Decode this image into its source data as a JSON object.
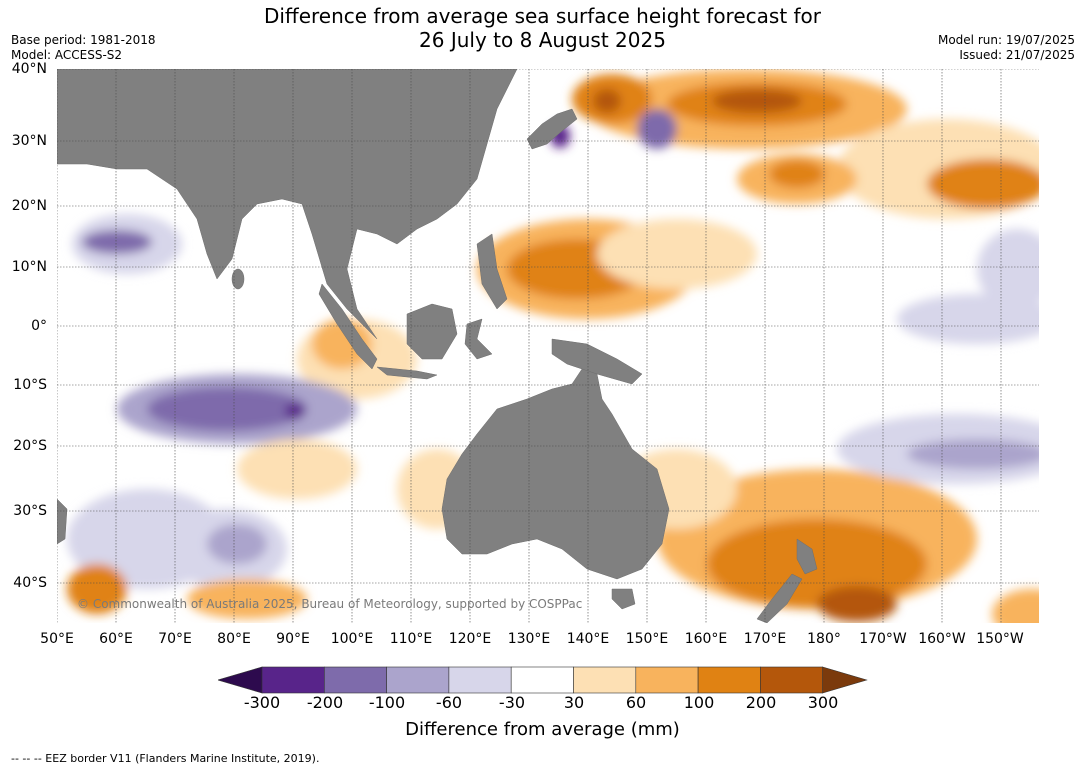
{
  "header": {
    "title_line1": "Difference from average sea surface height forecast for",
    "title_line2": "26 July to 8 August 2025",
    "base_period": "Base period: 1981-2018",
    "model": "Model: ACCESS-S2",
    "model_run": "Model run: 19/07/2025",
    "issued": "Issued: 21/07/2025"
  },
  "map": {
    "lat_labels": [
      "40°N",
      "30°N",
      "20°N",
      "10°N",
      "0°",
      "10°S",
      "20°S",
      "30°S",
      "40°S"
    ],
    "lon_labels": [
      "50°E",
      "60°E",
      "70°E",
      "80°E",
      "90°E",
      "100°E",
      "110°E",
      "120°E",
      "130°E",
      "140°E",
      "150°E",
      "160°E",
      "170°E",
      "180°",
      "170°W",
      "160°W",
      "150°W"
    ],
    "land_color": "#808080",
    "copyright": "© Commonwealth of Australia 2025, Bureau of Meteorology, supported by COSPPac"
  },
  "colorbar": {
    "ticks": [
      "-300",
      "-200",
      "-100",
      "-60",
      "-30",
      "30",
      "60",
      "100",
      "200",
      "300"
    ],
    "colors": [
      "#2d0a4e",
      "#58248a",
      "#7e6bab",
      "#aba4cc",
      "#d7d6ea",
      "#ffffff",
      "#fde0b4",
      "#f8b35d",
      "#e08213",
      "#b4570b",
      "#7b3a0c"
    ],
    "label": "Difference from average (mm)"
  },
  "footnote": "--  --  -- EEZ border V11 (Flanders Marine Institute, 2019)."
}
